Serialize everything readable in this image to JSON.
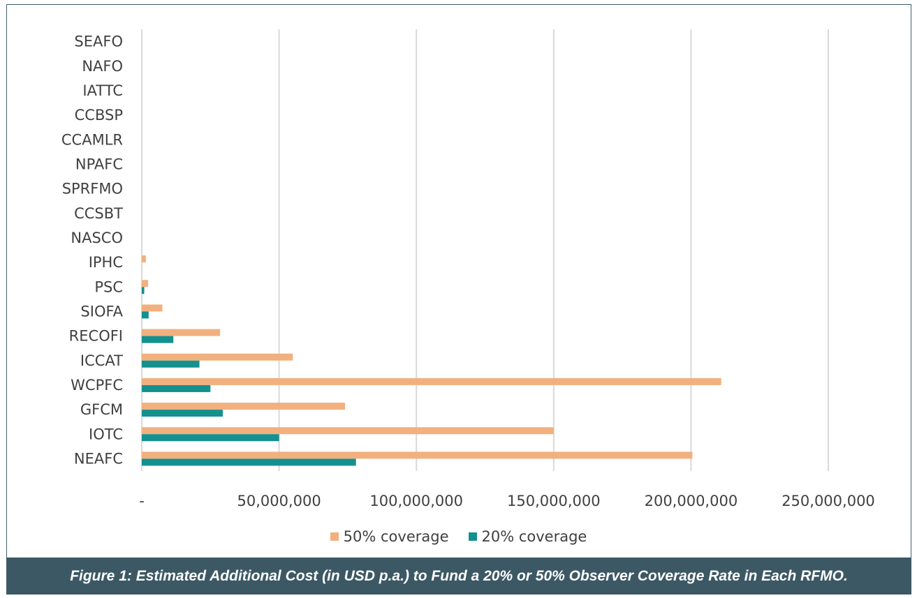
{
  "caption": "Figure 1: Estimated Additional Cost (in USD p.a.) to Fund a 20% or 50% Observer Coverage Rate in Each RFMO.",
  "colors": {
    "cov50": "#f2b07e",
    "cov20": "#14908f",
    "grid": "#d9d9d9",
    "text": "#404040",
    "caption_bg": "#3c5865"
  },
  "chart_data": {
    "type": "bar",
    "orientation": "horizontal",
    "categories": [
      "SEAFO",
      "NAFO",
      "IATTC",
      "CCBSP",
      "CCAMLR",
      "NPAFC",
      "SPRFMO",
      "CCSBT",
      "NASCO",
      "IPHC",
      "PSC",
      "SIOFA",
      "RECOFI",
      "ICCAT",
      "WCPFC",
      "GFCM",
      "IOTC",
      "NEAFC"
    ],
    "series": [
      {
        "name": "50% coverage",
        "color": "#f2b07e",
        "values": [
          0,
          0,
          0,
          0,
          0,
          0,
          0,
          0,
          0,
          1500000,
          2300000,
          7500000,
          28500000,
          55000000,
          211000000,
          74000000,
          150000000,
          200500000
        ]
      },
      {
        "name": "20% coverage",
        "color": "#14908f",
        "values": [
          0,
          0,
          0,
          0,
          0,
          0,
          0,
          0,
          0,
          0,
          900000,
          2500000,
          11500000,
          21000000,
          25000000,
          29500000,
          50000000,
          78000000
        ]
      }
    ],
    "xlim": [
      0,
      250000000
    ],
    "x_ticks": [
      0,
      50000000,
      100000000,
      150000000,
      200000000,
      250000000
    ],
    "x_tick_labels": [
      "-",
      "50,000,000",
      "100,000,000",
      "150,000,000",
      "200,000,000",
      "250,000,000"
    ],
    "grid": true,
    "legend_position": "bottom",
    "xlabel": "",
    "ylabel": ""
  }
}
